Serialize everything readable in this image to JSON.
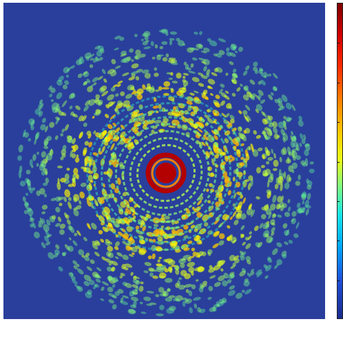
{
  "chart_data": {
    "type": "heatmap",
    "title": "",
    "xlabel": "",
    "ylabel": "",
    "description_values": {
      "central_spot_level": 1.0,
      "first_ring_level": 0.95,
      "inner_rings_level": 0.55,
      "speckle_halo_level": 0.45,
      "background_level": 0.1
    },
    "colormap": "jet",
    "colorbar": {
      "visible": true,
      "tick_count": 7,
      "placement": "right"
    },
    "colors": {
      "background": "#2a3f9c",
      "low": "#1a2a8c",
      "mid": "#80ff80",
      "high": "#7f0000"
    }
  }
}
